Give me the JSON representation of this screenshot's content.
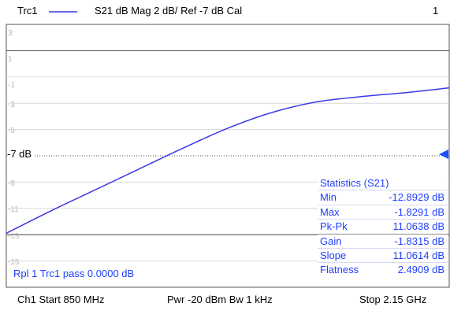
{
  "header": {
    "trace": "Trc1",
    "info": "S21  dB Mag  2 dB/ Ref -7 dB  Cal",
    "channel_no": "1"
  },
  "ref_label": "-7 dB",
  "y_ticks": [
    "3",
    "1",
    "-1",
    "-3",
    "-5",
    "-9",
    "-11",
    "-13",
    "-15"
  ],
  "limit_check": {
    "text": "Rpl 1  Trc1  pass  0.0000 dB"
  },
  "statistics": {
    "title": "Statistics  (S21)",
    "rows": [
      {
        "label": "Min",
        "value": "-12.8929 dB"
      },
      {
        "label": "Max",
        "value": "-1.8291 dB"
      },
      {
        "label": "Pk-Pk",
        "value": "11.0638 dB"
      },
      {
        "label": "Gain",
        "value": "-1.8315 dB"
      },
      {
        "label": "Slope",
        "value": "11.0614 dB"
      },
      {
        "label": "Flatness",
        "value": "2.4909 dB"
      }
    ]
  },
  "footer": {
    "start": "Ch1  Start  850 MHz",
    "power": "Pwr  -20 dBm  Bw  1 kHz",
    "stop": "Stop  2.15 GHz"
  },
  "colors": {
    "trace": "#3a3ae6",
    "ref_marker": "#1f50ff",
    "stats_text": "#1f3fff",
    "grid": "#d9d9d9"
  },
  "chart_data": {
    "type": "line",
    "title": "",
    "xlabel": "",
    "ylabel": "",
    "xlim": [
      850,
      2150
    ],
    "ylim": [
      -17,
      3
    ],
    "y_unit": "dB",
    "x_unit": "MHz",
    "reference_level": -7,
    "series": [
      {
        "name": "Trc1",
        "x": [
          850,
          980,
          1110,
          1240,
          1370,
          1500,
          1630,
          1760,
          1890,
          2020,
          2150
        ],
        "values": [
          -12.89,
          -11.2,
          -9.6,
          -8.0,
          -6.4,
          -4.9,
          -3.7,
          -2.9,
          -2.5,
          -2.2,
          -1.83
        ]
      }
    ]
  }
}
